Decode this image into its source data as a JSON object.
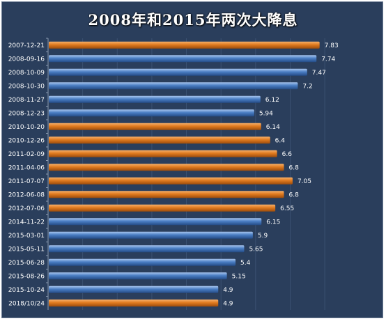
{
  "chart_data": {
    "type": "bar",
    "orientation": "horizontal",
    "title": "2008年和2015年两次大降息",
    "xlabel": "",
    "ylabel": "",
    "xlim": [
      0,
      8.3
    ],
    "grid": true,
    "legend": "none",
    "colors": {
      "orange": "#e07a1f",
      "blue": "#4a7ec4",
      "background": "#2a3e5c"
    },
    "categories": [
      "2007-12-21",
      "2008-09-16",
      "2008-10-09",
      "2008-10-30",
      "2008-11-27",
      "2008-12-23",
      "2010-10-20",
      "2010-12-26",
      "2011-02-09",
      "2011-04-06",
      "2011-07-07",
      "2012-06-08",
      "2012-07-06",
      "2014-11-22",
      "2015-03-01",
      "2015-05-11",
      "2015-06-28",
      "2015-08-26",
      "2015-10-24",
      "2018/10/24"
    ],
    "values": [
      7.83,
      7.74,
      7.47,
      7.2,
      6.12,
      5.94,
      6.14,
      6.4,
      6.6,
      6.8,
      7.05,
      6.8,
      6.55,
      6.15,
      5.9,
      5.65,
      5.4,
      5.15,
      4.9,
      4.9
    ],
    "value_labels": [
      "7.83",
      "7.74",
      "7.47",
      "7.2",
      "6.12",
      "5.94",
      "6.14",
      "6.4",
      "6.6",
      "6.8",
      "7.05",
      "6.8",
      "6.55",
      "6.15",
      "5.9",
      "5.65",
      "5.4",
      "5.15",
      "4.9",
      "4.9"
    ],
    "bar_colors": [
      "orange",
      "blue",
      "blue",
      "blue",
      "blue",
      "blue",
      "orange",
      "orange",
      "orange",
      "orange",
      "orange",
      "orange",
      "orange",
      "blue",
      "blue",
      "blue",
      "blue",
      "blue",
      "blue",
      "orange"
    ]
  }
}
